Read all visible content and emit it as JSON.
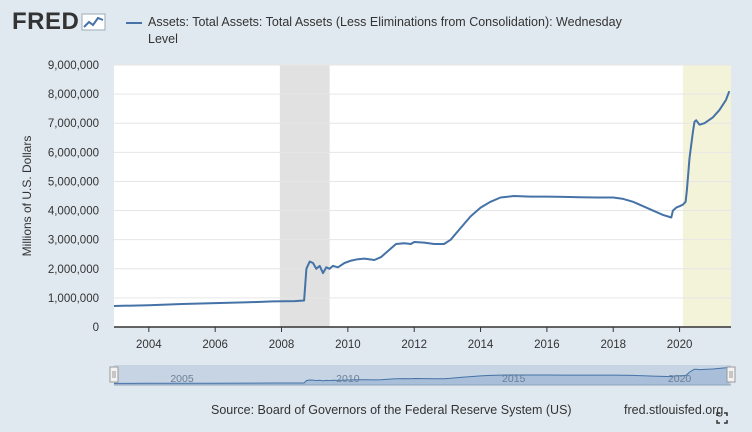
{
  "header": {
    "logo_text": "FRED",
    "logo_icon": "fred-chart-icon"
  },
  "legend": {
    "label": "Assets: Total Assets: Total Assets (Less Eliminations from Consolidation): Wednesday Level",
    "color": "#4572a7"
  },
  "footer": {
    "source": "Source: Board of Governors of the Federal Reserve System (US)",
    "site": "fred.stlouisfed.org",
    "expand_icon": "fullscreen-expand-icon"
  },
  "colors": {
    "background": "#e1e9f0",
    "plot_bg": "#ffffff",
    "recession_gray": "#e1e1e1",
    "recession_2020": "#f3f3d9",
    "navigator_fill": "#a9bfd9",
    "navigator_line": "#4572a7"
  },
  "chart_data": {
    "type": "line",
    "title": "Assets: Total Assets: Total Assets (Less Eliminations from Consolidation): Wednesday Level",
    "xlabel": "",
    "ylabel": "Millions of U.S. Dollars",
    "xlim": [
      2002.95,
      2021.55
    ],
    "ylim": [
      0,
      9000000
    ],
    "x_ticks": [
      2004,
      2006,
      2008,
      2010,
      2012,
      2014,
      2016,
      2018,
      2020
    ],
    "y_ticks": [
      0,
      1000000,
      2000000,
      3000000,
      4000000,
      5000000,
      6000000,
      7000000,
      8000000,
      9000000
    ],
    "y_tick_labels": [
      "0",
      "1,000,000",
      "2,000,000",
      "3,000,000",
      "4,000,000",
      "5,000,000",
      "6,000,000",
      "7,000,000",
      "8,000,000",
      "9,000,000"
    ],
    "grid": true,
    "recessions": [
      [
        2007.95,
        2009.45
      ],
      [
        2020.1,
        2021.55
      ]
    ],
    "navigator_labels": [
      2005,
      2010,
      2015,
      2020
    ],
    "series": [
      {
        "name": "Total Assets",
        "x": [
          2002.95,
          2004.0,
          2005.0,
          2006.0,
          2007.0,
          2007.75,
          2008.4,
          2008.68,
          2008.75,
          2008.85,
          2008.95,
          2009.05,
          2009.15,
          2009.25,
          2009.35,
          2009.45,
          2009.55,
          2009.7,
          2009.9,
          2010.1,
          2010.3,
          2010.5,
          2010.8,
          2011.0,
          2011.2,
          2011.45,
          2011.7,
          2011.9,
          2012.0,
          2012.3,
          2012.6,
          2012.9,
          2013.1,
          2013.4,
          2013.7,
          2014.0,
          2014.3,
          2014.6,
          2014.85,
          2015.0,
          2015.5,
          2016.0,
          2016.5,
          2017.0,
          2017.5,
          2018.0,
          2018.3,
          2018.6,
          2018.9,
          2019.2,
          2019.5,
          2019.75,
          2019.8,
          2019.9,
          2020.0,
          2020.1,
          2020.18,
          2020.22,
          2020.3,
          2020.4,
          2020.45,
          2020.5,
          2020.6,
          2020.75,
          2021.0,
          2021.2,
          2021.4,
          2021.5
        ],
        "values": [
          720000,
          750000,
          790000,
          820000,
          850000,
          880000,
          890000,
          910000,
          2000000,
          2250000,
          2200000,
          2000000,
          2100000,
          1850000,
          2050000,
          2000000,
          2100000,
          2050000,
          2200000,
          2280000,
          2330000,
          2350000,
          2300000,
          2400000,
          2600000,
          2850000,
          2880000,
          2850000,
          2920000,
          2900000,
          2850000,
          2850000,
          3000000,
          3400000,
          3800000,
          4100000,
          4300000,
          4450000,
          4480000,
          4500000,
          4480000,
          4480000,
          4470000,
          4460000,
          4450000,
          4450000,
          4400000,
          4300000,
          4150000,
          4000000,
          3850000,
          3760000,
          4000000,
          4100000,
          4150000,
          4200000,
          4300000,
          4700000,
          5800000,
          6700000,
          7050000,
          7100000,
          6950000,
          7000000,
          7200000,
          7450000,
          7800000,
          8100000
        ]
      }
    ]
  }
}
